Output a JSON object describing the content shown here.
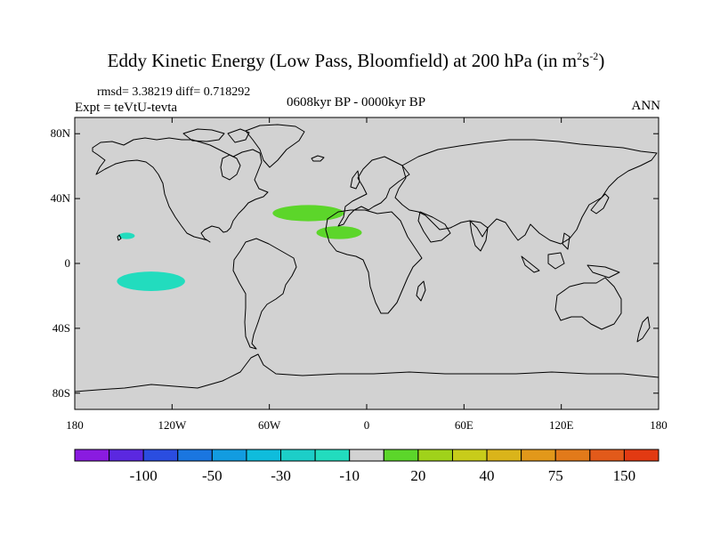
{
  "header": {
    "title_main": "Eddy Kinetic Energy (Low Pass, Bloomfield) at 200 hPa (in m",
    "title_sup1": "2",
    "title_mid": "s",
    "title_sup2": "-2",
    "title_end": ")",
    "stats": "rmsd= 3.38219 diff= 0.718292",
    "experiment": "Expt = teVtU-tevta",
    "period": "0608kyr BP - 0000kyr BP",
    "season": "ANN"
  },
  "map": {
    "lon_range": [
      -180,
      180
    ],
    "lat_range": [
      -90,
      90
    ],
    "lat_ticks": [
      {
        "value": 80,
        "label": "80N"
      },
      {
        "value": 40,
        "label": "40N"
      },
      {
        "value": 0,
        "label": "0"
      },
      {
        "value": -40,
        "label": "40S"
      },
      {
        "value": -80,
        "label": "80S"
      }
    ],
    "lon_ticks": [
      {
        "value": -180,
        "label": "180"
      },
      {
        "value": -120,
        "label": "120W"
      },
      {
        "value": -60,
        "label": "60W"
      },
      {
        "value": 0,
        "label": "0"
      },
      {
        "value": 60,
        "label": "60E"
      },
      {
        "value": 120,
        "label": "120E"
      },
      {
        "value": 180,
        "label": "180"
      }
    ],
    "background_color": "#d2d2d2",
    "anomaly_regions": [
      {
        "category": "-30 to -10",
        "color": "#22dcbe",
        "lon": -133,
        "lat": -11,
        "lon_radius": 21,
        "lat_radius": 6
      },
      {
        "category": "-30 to -10",
        "color": "#22dcbe",
        "lon": -148,
        "lat": 17,
        "lon_radius": 5,
        "lat_radius": 2
      },
      {
        "category": "10 to 20",
        "color": "#5cd62a",
        "lon": -36,
        "lat": 31,
        "lon_radius": 22,
        "lat_radius": 5
      },
      {
        "category": "10 to 20",
        "color": "#5cd62a",
        "lon": -17,
        "lat": 19,
        "lon_radius": 14,
        "lat_radius": 4
      }
    ]
  },
  "legend": {
    "colors": [
      "#8a1be0",
      "#5b28e0",
      "#2a4de0",
      "#1a76e0",
      "#129ce0",
      "#0fbcdc",
      "#1ccec8",
      "#22dcbe",
      "#d2d2d2",
      "#5cd62a",
      "#a0d21a",
      "#c8cc1a",
      "#dab41a",
      "#e2981a",
      "#e27a1a",
      "#e25a1a",
      "#e23a12"
    ],
    "labels": [
      "-100",
      "-50",
      "-30",
      "-10",
      "20",
      "40",
      "75",
      "150"
    ]
  }
}
